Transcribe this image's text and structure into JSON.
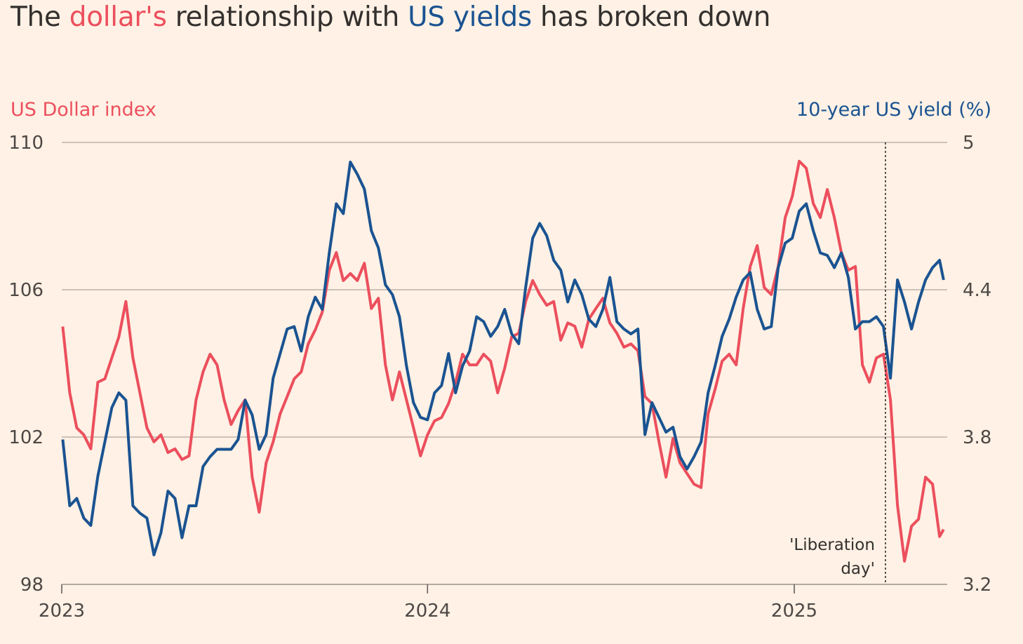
{
  "title": {
    "prefix": "The ",
    "dollar": "dollar's",
    "middle": " relationship with ",
    "yields": "US yields",
    "suffix": " has broken down"
  },
  "chart_data": {
    "type": "line",
    "title": "The dollar's relationship with US yields has broken down",
    "colors": {
      "dollar": "#ec4f5d",
      "yield": "#1a5391",
      "grid": "#cdc2b8",
      "background": "#fff1e5"
    },
    "left_axis": {
      "label": "US Dollar index",
      "range": [
        98,
        110
      ],
      "ticks": [
        "98",
        "102",
        "106",
        "110"
      ],
      "tick_values": [
        98,
        102,
        106,
        110
      ]
    },
    "right_axis": {
      "label": "10-year US yield (%)",
      "range": [
        3.2,
        5.0
      ],
      "ticks": [
        "3.2",
        "3.8",
        "4.4",
        "5"
      ],
      "tick_values": [
        3.2,
        3.8,
        4.4,
        5.0
      ]
    },
    "x_axis": {
      "ticks": [
        "2023",
        "2024",
        "2025"
      ],
      "tick_dates": [
        "2023-01-01",
        "2024-01-01",
        "2025-01-01"
      ]
    },
    "grid": true,
    "annotation": {
      "date": "2025-04-02",
      "line1": "'Liberation",
      "line2": "day'"
    },
    "dates": [
      "2023-01-02",
      "2023-01-09",
      "2023-01-16",
      "2023-01-23",
      "2023-01-30",
      "2023-02-06",
      "2023-02-13",
      "2023-02-20",
      "2023-02-27",
      "2023-03-06",
      "2023-03-13",
      "2023-03-20",
      "2023-03-27",
      "2023-04-03",
      "2023-04-10",
      "2023-04-17",
      "2023-04-24",
      "2023-05-01",
      "2023-05-08",
      "2023-05-15",
      "2023-05-22",
      "2023-05-29",
      "2023-06-05",
      "2023-06-12",
      "2023-06-19",
      "2023-06-26",
      "2023-07-03",
      "2023-07-10",
      "2023-07-17",
      "2023-07-24",
      "2023-07-31",
      "2023-08-07",
      "2023-08-14",
      "2023-08-21",
      "2023-08-28",
      "2023-09-04",
      "2023-09-11",
      "2023-09-18",
      "2023-09-25",
      "2023-10-02",
      "2023-10-09",
      "2023-10-16",
      "2023-10-23",
      "2023-10-30",
      "2023-11-06",
      "2023-11-13",
      "2023-11-20",
      "2023-11-27",
      "2023-12-04",
      "2023-12-11",
      "2023-12-18",
      "2023-12-25",
      "2024-01-01",
      "2024-01-08",
      "2024-01-15",
      "2024-01-22",
      "2024-01-29",
      "2024-02-05",
      "2024-02-12",
      "2024-02-19",
      "2024-02-26",
      "2024-03-04",
      "2024-03-11",
      "2024-03-18",
      "2024-03-25",
      "2024-04-01",
      "2024-04-08",
      "2024-04-15",
      "2024-04-22",
      "2024-04-29",
      "2024-05-06",
      "2024-05-13",
      "2024-05-20",
      "2024-05-27",
      "2024-06-03",
      "2024-06-10",
      "2024-06-17",
      "2024-06-24",
      "2024-07-01",
      "2024-07-08",
      "2024-07-15",
      "2024-07-22",
      "2024-07-29",
      "2024-08-05",
      "2024-08-12",
      "2024-08-19",
      "2024-08-26",
      "2024-09-02",
      "2024-09-09",
      "2024-09-16",
      "2024-09-23",
      "2024-09-30",
      "2024-10-07",
      "2024-10-14",
      "2024-10-21",
      "2024-10-28",
      "2024-11-04",
      "2024-11-11",
      "2024-11-18",
      "2024-11-25",
      "2024-12-02",
      "2024-12-09",
      "2024-12-16",
      "2024-12-23",
      "2024-12-30",
      "2025-01-06",
      "2025-01-13",
      "2025-01-20",
      "2025-01-27",
      "2025-02-03",
      "2025-02-10",
      "2025-02-17",
      "2025-02-24",
      "2025-03-03",
      "2025-03-10",
      "2025-03-17",
      "2025-03-24",
      "2025-03-31",
      "2025-04-07",
      "2025-04-14",
      "2025-04-21",
      "2025-04-28",
      "2025-05-05",
      "2025-05-12",
      "2025-05-19",
      "2025-05-26",
      "2025-05-30"
    ],
    "series": [
      {
        "name": "US Dollar index",
        "axis": "left",
        "values": [
          105.0,
          103.2,
          102.25,
          102.06,
          101.68,
          103.49,
          103.58,
          104.15,
          104.72,
          105.68,
          104.15,
          103.2,
          102.25,
          101.87,
          102.06,
          101.58,
          101.68,
          101.39,
          101.49,
          103.01,
          103.77,
          104.25,
          103.96,
          103.01,
          102.34,
          102.72,
          103.01,
          100.91,
          99.96,
          101.3,
          101.87,
          102.63,
          103.1,
          103.58,
          103.77,
          104.53,
          104.91,
          105.39,
          106.53,
          107.01,
          106.25,
          106.44,
          106.25,
          106.72,
          105.49,
          105.77,
          103.96,
          103.01,
          103.77,
          103.01,
          102.25,
          101.49,
          102.06,
          102.44,
          102.53,
          102.91,
          103.49,
          104.25,
          103.96,
          103.96,
          104.25,
          104.06,
          103.2,
          103.87,
          104.72,
          104.82,
          105.68,
          106.25,
          105.87,
          105.58,
          105.68,
          104.63,
          105.1,
          105.01,
          104.44,
          105.2,
          105.49,
          105.77,
          105.1,
          104.82,
          104.44,
          104.53,
          104.34,
          103.1,
          102.91,
          101.87,
          100.91,
          101.96,
          101.3,
          101.01,
          100.72,
          100.63,
          102.63,
          103.3,
          104.06,
          104.25,
          103.96,
          105.49,
          106.63,
          107.2,
          106.06,
          105.87,
          106.63,
          107.96,
          108.53,
          109.49,
          109.3,
          108.34,
          107.96,
          108.72,
          107.96,
          107.01,
          106.53,
          106.63,
          103.96,
          103.49,
          104.15,
          104.25,
          103.01,
          100.15,
          98.63,
          99.58,
          99.77,
          100.91,
          100.72,
          99.3,
          99.49
        ]
      },
      {
        "name": "10-year US yield (%)",
        "axis": "right",
        "values": [
          3.79,
          3.52,
          3.55,
          3.47,
          3.44,
          3.64,
          3.78,
          3.92,
          3.98,
          3.95,
          3.52,
          3.49,
          3.47,
          3.32,
          3.41,
          3.58,
          3.55,
          3.39,
          3.52,
          3.52,
          3.68,
          3.72,
          3.75,
          3.75,
          3.75,
          3.79,
          3.95,
          3.89,
          3.75,
          3.81,
          4.04,
          4.14,
          4.24,
          4.25,
          4.15,
          4.29,
          4.37,
          4.32,
          4.55,
          4.75,
          4.71,
          4.92,
          4.87,
          4.81,
          4.64,
          4.57,
          4.42,
          4.38,
          4.29,
          4.09,
          3.94,
          3.88,
          3.87,
          3.98,
          4.01,
          4.14,
          3.98,
          4.09,
          4.15,
          4.29,
          4.27,
          4.21,
          4.25,
          4.32,
          4.22,
          4.18,
          4.41,
          4.61,
          4.67,
          4.62,
          4.52,
          4.48,
          4.35,
          4.44,
          4.38,
          4.28,
          4.25,
          4.32,
          4.45,
          4.27,
          4.24,
          4.22,
          4.24,
          3.81,
          3.94,
          3.88,
          3.82,
          3.84,
          3.72,
          3.67,
          3.72,
          3.78,
          3.98,
          4.09,
          4.21,
          4.28,
          4.37,
          4.44,
          4.47,
          4.32,
          4.24,
          4.25,
          4.49,
          4.59,
          4.61,
          4.72,
          4.75,
          4.64,
          4.55,
          4.54,
          4.49,
          4.55,
          4.45,
          4.24,
          4.27,
          4.27,
          4.29,
          4.25,
          4.04,
          4.44,
          4.35,
          4.24,
          4.35,
          4.44,
          4.49,
          4.52,
          4.44
        ]
      }
    ]
  }
}
